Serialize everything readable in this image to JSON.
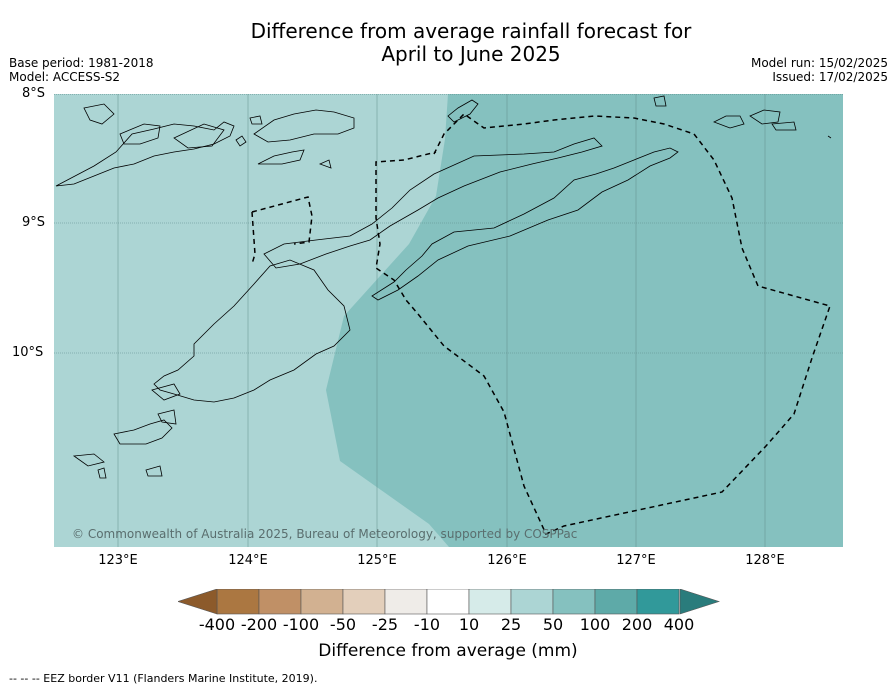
{
  "title_line1": "Difference from average rainfall forecast for",
  "title_line2": "April to June 2025",
  "meta_left": {
    "base_period": "Base period: 1981-2018",
    "model": "Model: ACCESS-S2"
  },
  "meta_right": {
    "model_run": "Model run: 15/02/2025",
    "issued": "Issued: 17/02/2025"
  },
  "lat_labels": [
    "8°S",
    "9°S",
    "10°S"
  ],
  "lon_labels": [
    "123°E",
    "124°E",
    "125°E",
    "126°E",
    "127°E",
    "128°E"
  ],
  "copyright": "© Commonwealth of Australia 2025, Bureau of Meteorology, supported by COSPPac",
  "colorbar": {
    "ticks": [
      "-400",
      "-200",
      "-100",
      "-50",
      "-25",
      "-10",
      "10",
      "25",
      "50",
      "100",
      "200",
      "400"
    ],
    "colors": [
      "#8c5a2b",
      "#ab7741",
      "#c09066",
      "#d2b191",
      "#e3cfbb",
      "#efece8",
      "#ffffff",
      "#d6ebe9",
      "#acd5d4",
      "#85c1bf",
      "#5eaaa8",
      "#31999a",
      "#2a7c7c"
    ],
    "label": "Difference from average (mm)"
  },
  "map_colors": {
    "land_sea_light": "#acd5d4",
    "region_mid": "#85c1bf"
  },
  "footnote": "--  --  -- EEZ border V11 (Flanders Marine Institute, 2019)."
}
